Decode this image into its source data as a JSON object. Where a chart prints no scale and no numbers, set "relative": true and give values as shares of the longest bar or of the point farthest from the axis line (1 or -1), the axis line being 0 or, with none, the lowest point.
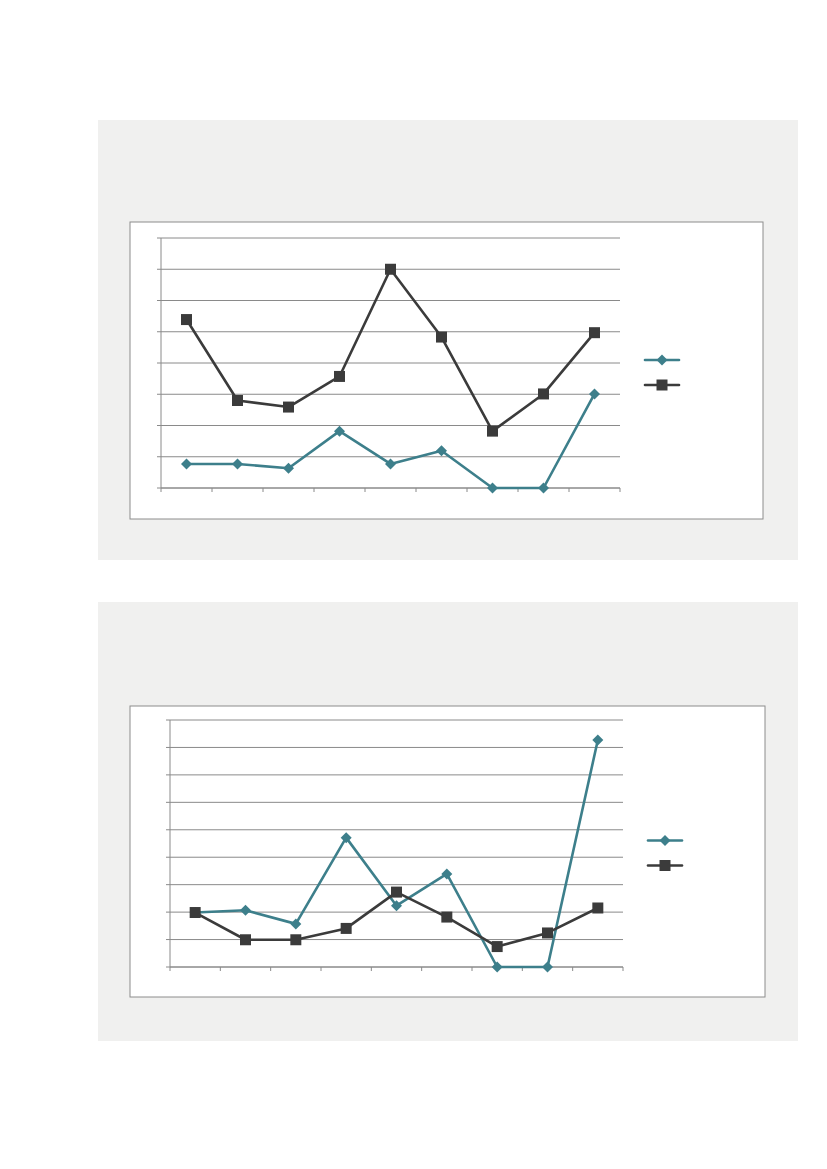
{
  "chart_data": [
    {
      "type": "line",
      "categories": [
        null,
        null,
        null,
        null,
        null,
        null,
        null,
        null,
        null
      ],
      "relative": true,
      "grid": "y",
      "series": [
        {
          "color": "#3d7f8b",
          "marker": "diamond",
          "values": [
            0.11,
            0.11,
            0.09,
            0.26,
            0.11,
            0.17,
            0,
            0,
            0.43
          ]
        },
        {
          "color": "#3b3b3b",
          "marker": "square",
          "values": [
            0.77,
            0.4,
            0.37,
            0.51,
            1,
            0.69,
            0.26,
            0.43,
            0.71
          ]
        }
      ]
    },
    {
      "type": "line",
      "categories": [
        null,
        null,
        null,
        null,
        null,
        null,
        null,
        null,
        null
      ],
      "relative": true,
      "grid": "y",
      "series": [
        {
          "color": "#3d7f8b",
          "marker": "diamond",
          "values": [
            0.24,
            0.25,
            0.19,
            0.57,
            0.27,
            0.41,
            0,
            0,
            1
          ]
        },
        {
          "color": "#3b3b3b",
          "marker": "square",
          "values": [
            0.24,
            0.12,
            0.12,
            0.17,
            0.33,
            0.22,
            0.09,
            0.15,
            0.26
          ]
        }
      ]
    }
  ]
}
